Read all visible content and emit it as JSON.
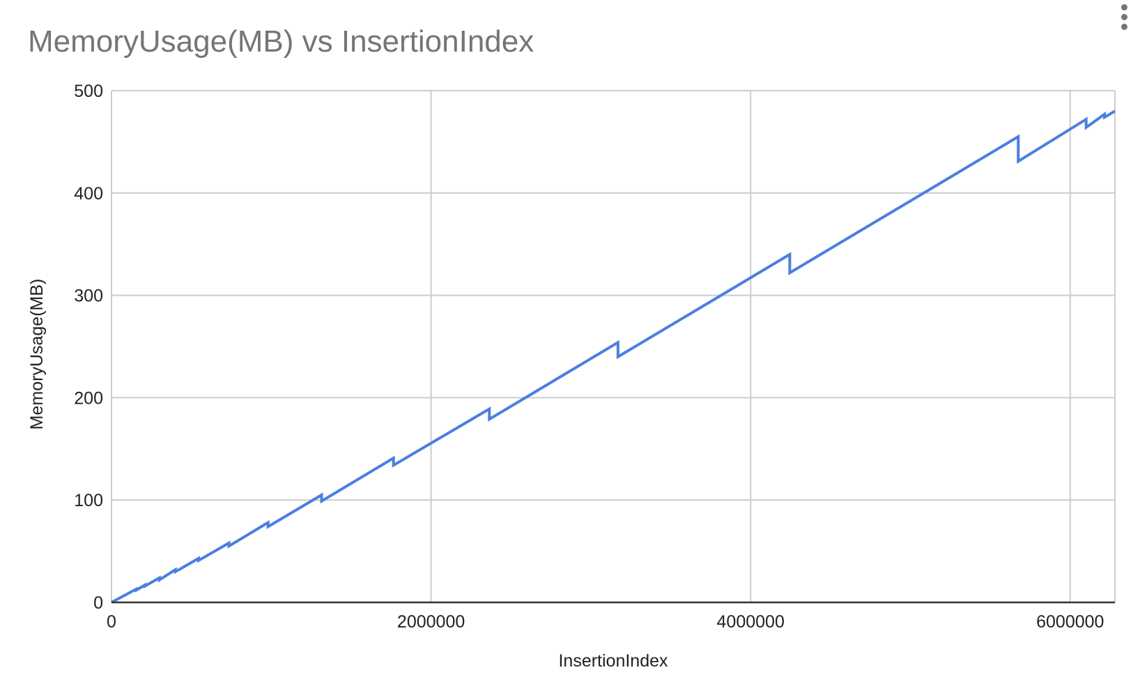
{
  "chart_data": {
    "type": "line",
    "title": "MemoryUsage(MB) vs InsertionIndex",
    "xlabel": "InsertionIndex",
    "ylabel": "MemoryUsage(MB)",
    "xlim": [
      0,
      6280000
    ],
    "ylim": [
      0,
      500
    ],
    "x_ticks": [
      0,
      2000000,
      4000000,
      6000000
    ],
    "x_tick_labels": [
      "0",
      "2000000",
      "4000000",
      "6000000"
    ],
    "y_ticks": [
      0,
      100,
      200,
      300,
      400,
      500
    ],
    "y_tick_labels": [
      "0",
      "100",
      "200",
      "300",
      "400",
      "500"
    ],
    "grid": true,
    "legend": "none",
    "series": [
      {
        "color": "#4a7fe0",
        "points": [
          [
            0,
            0
          ],
          [
            155000,
            13
          ],
          [
            155000,
            12
          ],
          [
            210000,
            17
          ],
          [
            210000,
            16
          ],
          [
            300000,
            24
          ],
          [
            300000,
            22
          ],
          [
            400000,
            32
          ],
          [
            400000,
            30
          ],
          [
            545000,
            43
          ],
          [
            545000,
            41
          ],
          [
            735000,
            58
          ],
          [
            735000,
            55
          ],
          [
            980000,
            78
          ],
          [
            980000,
            74
          ],
          [
            1315000,
            105
          ],
          [
            1315000,
            99
          ],
          [
            1765000,
            141
          ],
          [
            1765000,
            134
          ],
          [
            2365000,
            189
          ],
          [
            2365000,
            179
          ],
          [
            3170000,
            254
          ],
          [
            3170000,
            240
          ],
          [
            4245000,
            340
          ],
          [
            4245000,
            322
          ],
          [
            5675000,
            455
          ],
          [
            5675000,
            431
          ],
          [
            6100000,
            472
          ],
          [
            6100000,
            464
          ],
          [
            6215000,
            477
          ],
          [
            6215000,
            474
          ],
          [
            6280000,
            480
          ]
        ]
      }
    ]
  },
  "menu": {
    "icon": "more-vert-icon"
  }
}
